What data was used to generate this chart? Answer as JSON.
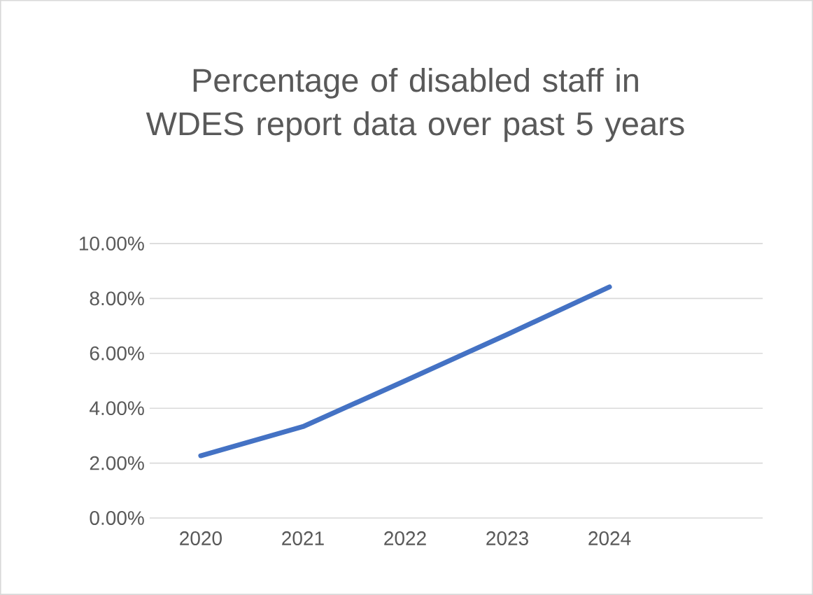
{
  "chart_data": {
    "type": "line",
    "title": "Percentage of disabled staff in WDES report  data over past 5 years",
    "categories": [
      "2020",
      "2021",
      "2022",
      "2023",
      "2024"
    ],
    "values": [
      2.27,
      3.33,
      5.0,
      6.69,
      8.42
    ],
    "color": "#4472c4",
    "ylim": [
      0,
      10
    ],
    "yticks": [
      {
        "value": 0,
        "label": "0.00%"
      },
      {
        "value": 2,
        "label": "2.00%"
      },
      {
        "value": 4,
        "label": "4.00%"
      },
      {
        "value": 6,
        "label": "6.00%"
      },
      {
        "value": 8,
        "label": "8.00%"
      },
      {
        "value": 10,
        "label": "10.00%"
      }
    ],
    "grid": "y",
    "marker": "none",
    "line_style": "solid"
  }
}
